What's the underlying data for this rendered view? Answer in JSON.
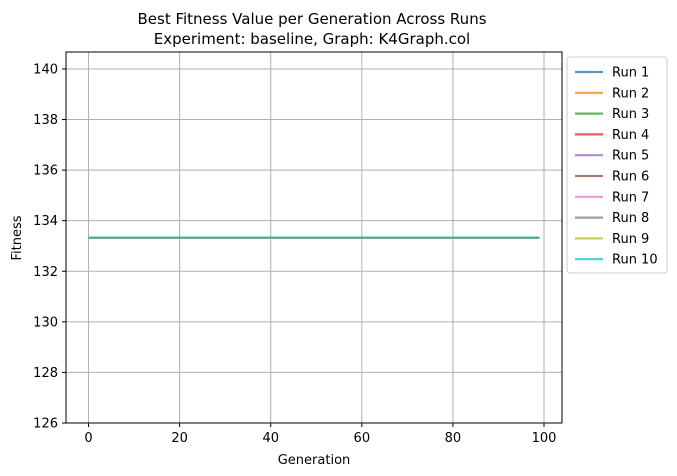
{
  "chart_data": {
    "type": "line",
    "title": "Best Fitness Value per Generation Across Runs",
    "subtitle": "Experiment: baseline, Graph: K4Graph.col",
    "xlabel": "Generation",
    "ylabel": "Fitness",
    "xlim": [
      -4.95,
      103.95
    ],
    "ylim": [
      126,
      140.67
    ],
    "xticks": [
      0,
      20,
      40,
      60,
      80,
      100
    ],
    "yticks": [
      126,
      128,
      130,
      132,
      134,
      136,
      138,
      140
    ],
    "xtick_labels": [
      "0",
      "20",
      "40",
      "60",
      "80",
      "100"
    ],
    "ytick_labels": [
      "126",
      "128",
      "130",
      "132",
      "134",
      "136",
      "138",
      "140"
    ],
    "grid": true,
    "legend_position": "outside-right-top",
    "x_range": [
      0,
      99
    ],
    "series": [
      {
        "name": "Run 1",
        "color": "#1f77b4",
        "y_constant": 133.33
      },
      {
        "name": "Run 2",
        "color": "#ff7f0e",
        "y_constant": 133.33
      },
      {
        "name": "Run 3",
        "color": "#2ca02c",
        "y_constant": 133.33
      },
      {
        "name": "Run 4",
        "color": "#d62728",
        "y_constant": 133.33
      },
      {
        "name": "Run 5",
        "color": "#9467bd",
        "y_constant": 133.33
      },
      {
        "name": "Run 6",
        "color": "#8c564b",
        "y_constant": 133.33
      },
      {
        "name": "Run 7",
        "color": "#e377c2",
        "y_constant": 133.33
      },
      {
        "name": "Run 8",
        "color": "#7f7f7f",
        "y_constant": 133.33
      },
      {
        "name": "Run 9",
        "color": "#bcbd22",
        "y_constant": 133.33
      },
      {
        "name": "Run 10",
        "color": "#17becf",
        "y_constant": 133.33
      }
    ]
  }
}
